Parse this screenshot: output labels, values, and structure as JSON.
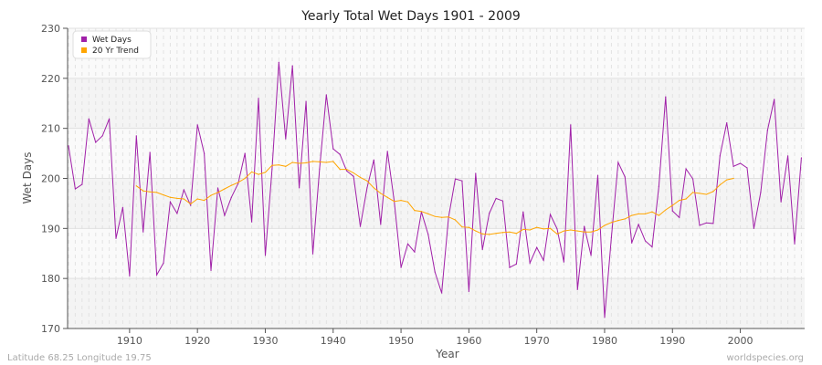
{
  "chart_data": {
    "type": "line",
    "title": "Yearly Total Wet Days 1901 - 2009",
    "xlabel": "Year",
    "ylabel": "Wet Days",
    "xlim": [
      1901,
      2009
    ],
    "ylim": [
      170,
      230
    ],
    "x_ticks": [
      1910,
      1920,
      1930,
      1940,
      1950,
      1960,
      1970,
      1980,
      1990,
      2000
    ],
    "y_ticks": [
      170,
      180,
      190,
      200,
      210,
      220,
      230
    ],
    "grid": true,
    "legend_position": "top-left",
    "series": [
      {
        "name": "Wet Days",
        "color": "#a020a8",
        "start_year": 1901,
        "values": [
          206.5,
          197.9,
          198.8,
          211.9,
          207.2,
          208.5,
          211.9,
          188.0,
          194.2,
          180.5,
          208.5,
          189.3,
          205.2,
          180.7,
          183.1,
          195.3,
          193.0,
          197.7,
          194.6,
          210.7,
          205.0,
          181.6,
          198.1,
          192.6,
          196.2,
          199.0,
          205.0,
          191.3,
          216.0,
          184.6,
          201.9,
          223.2,
          207.9,
          222.5,
          198.1,
          215.4,
          184.9,
          201.9,
          216.7,
          205.9,
          204.8,
          201.5,
          200.4,
          190.4,
          198.1,
          203.7,
          190.8,
          205.4,
          195.5,
          182.2,
          186.9,
          185.3,
          193.3,
          188.8,
          181.3,
          177.1,
          192.2,
          199.9,
          199.5,
          177.4,
          201.0,
          185.8,
          193.0,
          196.0,
          195.5,
          182.2,
          182.9,
          193.3,
          183.1,
          186.2,
          183.6,
          192.8,
          189.9,
          183.3,
          210.7,
          177.8,
          190.4,
          184.6,
          200.6,
          172.2,
          188.2,
          203.2,
          200.3,
          187.1,
          190.8,
          187.5,
          186.3,
          198.4,
          216.3,
          193.5,
          192.2,
          201.9,
          199.9,
          190.6,
          191.1,
          191.0,
          204.5,
          211.1,
          202.4,
          203.0,
          202.1,
          190.0,
          197.2,
          209.6,
          215.8,
          195.3,
          204.5,
          186.9,
          204.1
        ]
      },
      {
        "name": "20 Yr Trend",
        "color": "#ffa500",
        "start_year": 1911,
        "values": [
          198.5,
          197.5,
          197.3,
          197.2,
          196.7,
          196.2,
          196.0,
          195.9,
          194.9,
          195.9,
          195.6,
          196.6,
          197.2,
          197.9,
          198.6,
          199.2,
          200.0,
          201.3,
          200.8,
          201.2,
          202.6,
          202.7,
          202.4,
          203.2,
          203.0,
          203.1,
          203.4,
          203.3,
          203.2,
          203.4,
          201.8,
          201.8,
          201.1,
          200.2,
          199.5,
          198.1,
          197.0,
          196.2,
          195.4,
          195.6,
          195.3,
          193.6,
          193.4,
          192.9,
          192.4,
          192.2,
          192.3,
          191.7,
          190.3,
          190.2,
          189.5,
          188.9,
          188.8,
          189.0,
          189.2,
          189.3,
          189.0,
          189.8,
          189.7,
          190.2,
          189.9,
          190.0,
          188.9,
          189.5,
          189.7,
          189.5,
          189.3,
          189.3,
          189.7,
          190.6,
          191.2,
          191.6,
          191.9,
          192.6,
          192.9,
          192.9,
          193.3,
          192.6,
          193.7,
          194.6,
          195.6,
          195.9,
          197.2,
          197.0,
          196.8,
          197.4,
          198.7,
          199.7,
          200.0
        ]
      }
    ]
  },
  "footer": {
    "location": "Latitude 68.25 Longitude 19.75",
    "source": "worldspecies.org"
  }
}
